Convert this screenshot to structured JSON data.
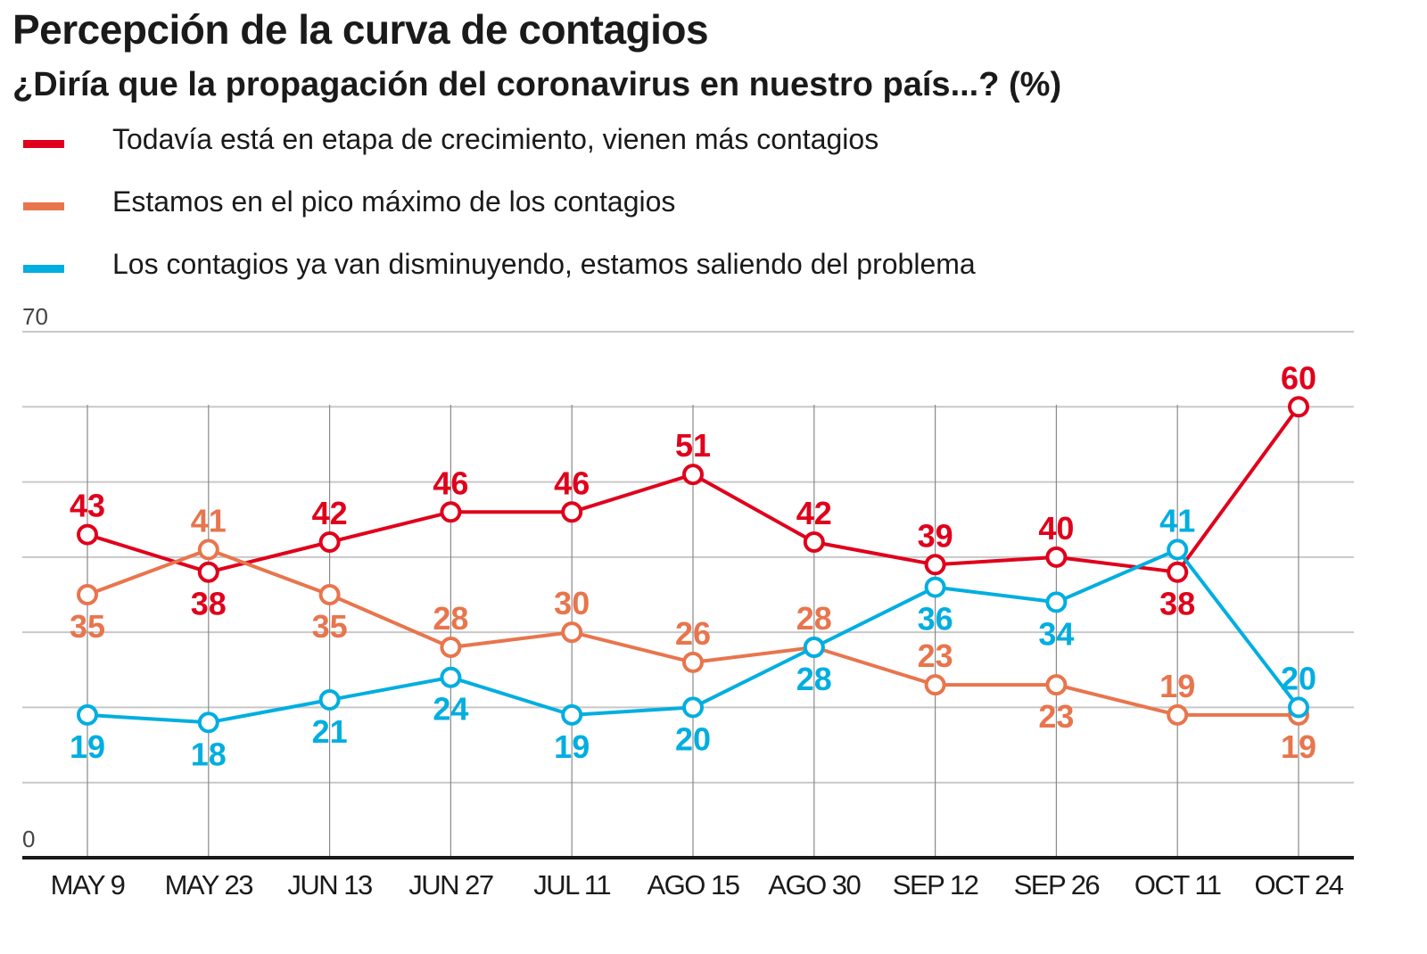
{
  "chart_data": {
    "type": "line",
    "title": "Percepción de la curva de contagios",
    "subtitle": "¿Diría que la propagación del coronavirus en nuestro país...? (%)",
    "xlabel": "",
    "ylabel": "",
    "categories": [
      "MAY 9",
      "MAY 23",
      "JUN 13",
      "JUN 27",
      "JUL 11",
      "AGO 15",
      "AGO 30",
      "SEP 12",
      "SEP 26",
      "OCT 11",
      "OCT 24"
    ],
    "ylim": [
      0,
      70
    ],
    "y_tick_labels": [
      "0",
      "70"
    ],
    "grid": true,
    "legend_position": "top-left",
    "series": [
      {
        "name": "Todavía está en etapa de crecimiento, vienen más contagios",
        "color": "#e0001b",
        "values": [
          43,
          38,
          42,
          46,
          46,
          51,
          42,
          39,
          40,
          38,
          60
        ],
        "label_positions": [
          "above",
          "below",
          "above",
          "above",
          "above",
          "above",
          "above",
          "above",
          "above",
          "below",
          "above"
        ]
      },
      {
        "name": "Estamos en el pico máximo de los contagios",
        "color": "#e8754d",
        "values": [
          35,
          41,
          35,
          28,
          30,
          26,
          28,
          23,
          23,
          19,
          19
        ],
        "label_positions": [
          "below",
          "above",
          "below",
          "above",
          "above",
          "above",
          "above",
          "above",
          "below",
          "above",
          "below"
        ]
      },
      {
        "name": "Los contagios ya van disminuyendo, estamos saliendo del problema",
        "color": "#00aee0",
        "values": [
          19,
          18,
          21,
          24,
          19,
          20,
          28,
          36,
          34,
          41,
          20
        ],
        "label_positions": [
          "below",
          "below",
          "below",
          "below",
          "below",
          "below",
          "below",
          "below",
          "below",
          "above",
          "above"
        ]
      }
    ]
  }
}
